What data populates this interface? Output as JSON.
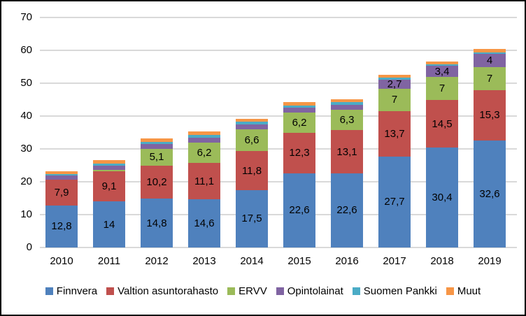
{
  "figure": {
    "background": "#ffffff",
    "border_color": "#000000",
    "gridline_color": "#d9d9d9"
  },
  "chart_data": {
    "type": "bar",
    "variant": "stacked",
    "title": "",
    "xlabel": "",
    "ylabel": "",
    "categories": [
      "2010",
      "2011",
      "2012",
      "2013",
      "2014",
      "2015",
      "2016",
      "2017",
      "2018",
      "2019"
    ],
    "ylim": [
      0,
      70
    ],
    "yticks": [
      "0",
      "10",
      "20",
      "30",
      "40",
      "50",
      "60",
      "70"
    ],
    "grid": true,
    "legend_position": "bottom",
    "series": [
      {
        "name": "Finnvera",
        "color": "#4F81BD",
        "values": [
          12.8,
          14,
          14.8,
          14.6,
          17.5,
          22.6,
          22.6,
          27.7,
          30.4,
          32.6
        ],
        "labels": [
          "12,8",
          "14",
          "14,8",
          "14,6",
          "17,5",
          "22,6",
          "22,6",
          "27,7",
          "30,4",
          "32,6"
        ]
      },
      {
        "name": "Valtion asuntorahasto",
        "color": "#C0504D",
        "values": [
          7.9,
          9.1,
          10.2,
          11.1,
          11.8,
          12.3,
          13.1,
          13.7,
          14.5,
          15.3
        ],
        "labels": [
          "7,9",
          "9,1",
          "10,2",
          "11,1",
          "11,8",
          "12,3",
          "13,1",
          "13,7",
          "14,5",
          "15,3"
        ]
      },
      {
        "name": "ERVV",
        "color": "#9BBB59",
        "values": [
          0,
          0.5,
          5.1,
          6.2,
          6.6,
          6.2,
          6.3,
          7,
          7,
          7
        ],
        "labels": [
          null,
          null,
          "5,1",
          "6,2",
          "6,6",
          "6,2",
          "6,3",
          "7",
          "7",
          "7"
        ]
      },
      {
        "name": "Opintolainat",
        "color": "#8064A2",
        "values": [
          1.3,
          1.4,
          1.3,
          1.5,
          1.6,
          1.4,
          1.5,
          2.7,
          3.4,
          4
        ],
        "labels": [
          null,
          null,
          null,
          null,
          null,
          null,
          null,
          "2,7",
          "3,4",
          "4"
        ]
      },
      {
        "name": "Suomen Pankki",
        "color": "#4BACC6",
        "values": [
          0.4,
          0.5,
          0.8,
          0.8,
          0.7,
          0.8,
          0.8,
          0.6,
          0.4,
          0.5
        ],
        "labels": [
          null,
          null,
          null,
          null,
          null,
          null,
          null,
          null,
          null,
          null
        ]
      },
      {
        "name": "Muut",
        "color": "#F79646",
        "values": [
          0.9,
          1.2,
          1.0,
          1.1,
          0.9,
          0.9,
          0.9,
          0.8,
          1.0,
          1.0
        ],
        "labels": [
          null,
          null,
          null,
          null,
          null,
          null,
          null,
          null,
          null,
          null
        ]
      }
    ]
  }
}
